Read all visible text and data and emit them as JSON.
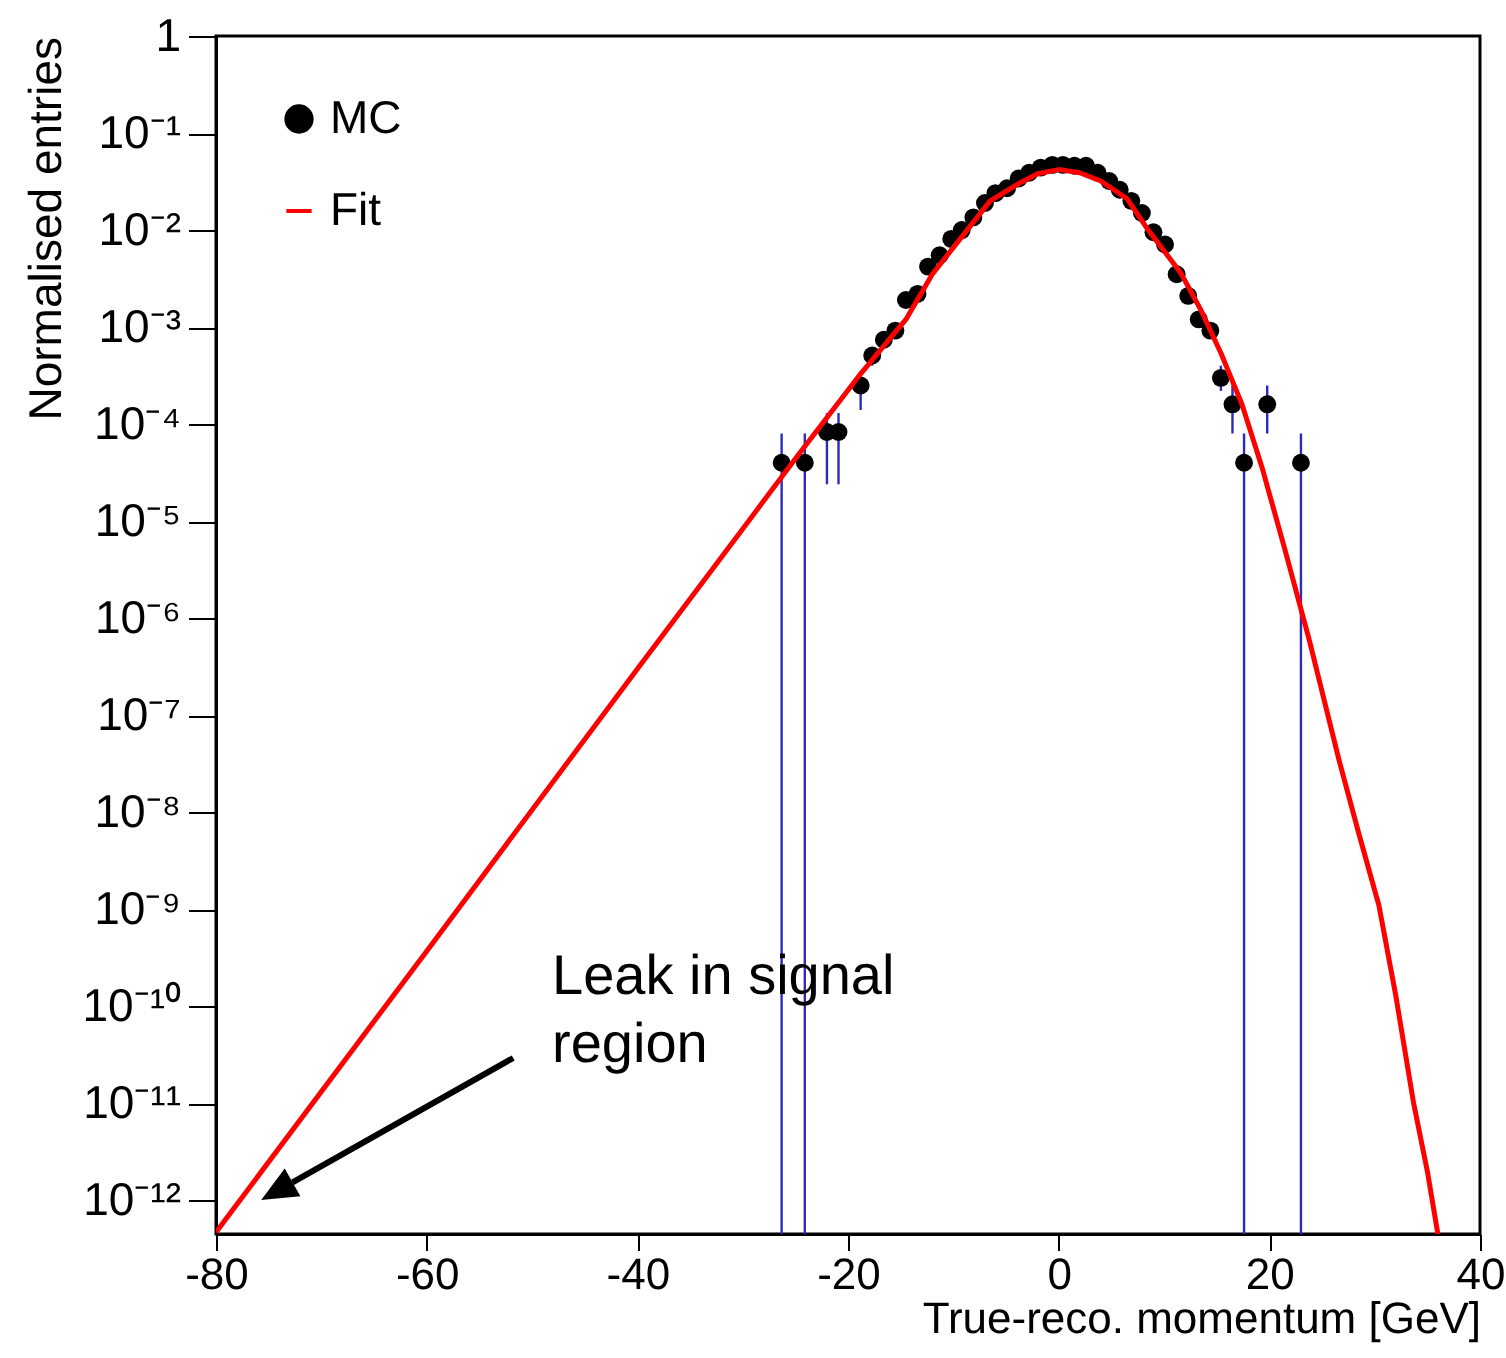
{
  "chart_data": {
    "type": "scatter",
    "xlabel": "True-reco. momentum [GeV]",
    "ylabel": "Normalised entries",
    "log": "y",
    "legend": "top left",
    "xlim": [
      -80,
      40
    ],
    "xticks": [
      -80,
      -60,
      -40,
      -20,
      0,
      20,
      40
    ],
    "ylim": [
      4.5e-13,
      1
    ],
    "yticks": [
      1,
      {
        "value": 0.1,
        "label": "10⁻¹"
      },
      {
        "value": 0.01,
        "label": "10⁻²"
      },
      {
        "value": 0.001,
        "label": "10⁻³"
      },
      {
        "value": 0.0001,
        "label": "10⁻⁴"
      },
      {
        "value": 1e-05,
        "label": "10⁻⁵"
      },
      {
        "value": 1e-06,
        "label": "10⁻⁶"
      },
      {
        "value": 1e-07,
        "label": "10⁻⁷"
      },
      {
        "value": 1e-08,
        "label": "10⁻⁸"
      },
      {
        "value": 1e-09,
        "label": "10⁻⁹"
      },
      {
        "value": 1e-10,
        "label": "10⁻¹⁰"
      },
      {
        "value": 1e-11,
        "label": "10⁻¹¹"
      },
      {
        "value": 1e-12,
        "label": "10⁻¹²"
      }
    ],
    "annotations": [
      "Leak in signal\nregion"
    ],
    "series": [
      {
        "name": "MC",
        "type": "scatter",
        "marker": "circle",
        "color": "#000000",
        "x": [
          -26.3,
          -24.1,
          -22.0,
          -20.9,
          -18.8,
          -17.7,
          -16.6,
          -15.5,
          -14.5,
          -13.4,
          -12.4,
          -11.3,
          -10.2,
          -9.2,
          -8.1,
          -7.0,
          -6.0,
          -4.9,
          -3.8,
          -2.8,
          -1.7,
          -0.6,
          0.4,
          1.5,
          2.6,
          3.7,
          4.8,
          5.8,
          6.9,
          7.9,
          9.0,
          10.1,
          11.2,
          12.3,
          13.3,
          14.4,
          15.4,
          16.5,
          17.6,
          19.8,
          23.0
        ],
        "values": [
          4e-05,
          4e-05,
          8.3e-05,
          8.3e-05,
          0.00025,
          0.00051,
          0.00074,
          0.00092,
          0.0019,
          0.0022,
          0.0042,
          0.0055,
          0.0081,
          0.01,
          0.0135,
          0.019,
          0.024,
          0.027,
          0.034,
          0.039,
          0.044,
          0.047,
          0.047,
          0.046,
          0.046,
          0.039,
          0.032,
          0.026,
          0.02,
          0.015,
          0.0095,
          0.0071,
          0.0035,
          0.0021,
          0.0012,
          0.00092,
          0.0003,
          0.00016,
          4e-05,
          0.00016,
          4e-05
        ],
        "errors": [
          [
            4.5e-13,
            8e-05
          ],
          [
            4.5e-13,
            8e-05
          ],
          [
            2.4e-05,
            0.00013
          ],
          [
            2.4e-05,
            0.00013
          ],
          [
            0.00014,
            0.00035
          ],
          [
            0.0004,
            0.0006
          ],
          null,
          null,
          null,
          null,
          null,
          null,
          null,
          null,
          null,
          null,
          null,
          null,
          null,
          null,
          null,
          null,
          null,
          null,
          null,
          null,
          null,
          null,
          null,
          null,
          null,
          null,
          null,
          null,
          null,
          null,
          [
            0.00022,
            0.0004
          ],
          [
            8e-05,
            0.00025
          ],
          [
            4.5e-13,
            8e-05
          ],
          [
            8e-05,
            0.00025
          ],
          [
            4.5e-13,
            8e-05
          ]
        ]
      },
      {
        "name": "Fit",
        "type": "line",
        "color": "#ff0000",
        "x": [
          -80,
          -60,
          -40,
          -30,
          -25,
          -18.8,
          -14.5,
          -12,
          -9.2,
          -6.5,
          -3.8,
          -2,
          0,
          2,
          4,
          6.5,
          8.5,
          11.6,
          13.5,
          15.4,
          17.4,
          19.3,
          21.5,
          23.8,
          26.6,
          28.5,
          30.4,
          32,
          33.7,
          35,
          36.0
        ],
        "values": [
          4.7e-13,
          3.7e-10,
          3e-07,
          8.3e-06,
          4.4e-05,
          0.00033,
          0.0012,
          0.0035,
          0.0085,
          0.02,
          0.03,
          0.038,
          0.042,
          0.039,
          0.032,
          0.021,
          0.01,
          0.0036,
          0.0015,
          0.00054,
          0.00016,
          3.6e-05,
          5e-06,
          5.9e-07,
          3.5e-08,
          6e-09,
          1.1e-09,
          1.3e-10,
          1e-11,
          2e-12,
          4.5e-13
        ]
      }
    ]
  }
}
